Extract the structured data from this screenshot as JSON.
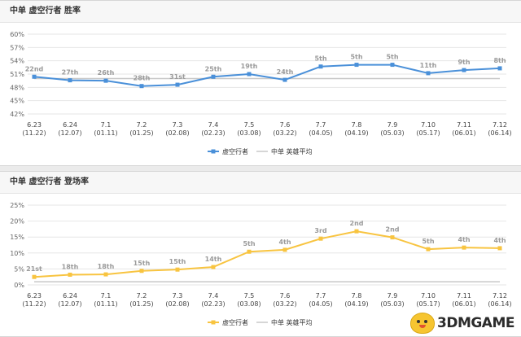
{
  "watermark": "3DMGAME",
  "chart_data": [
    {
      "type": "line",
      "title": "中单 虚空行者 胜率",
      "categories": [
        "6.23",
        "6.24",
        "7.1",
        "7.2",
        "7.3",
        "7.4",
        "7.5",
        "7.6",
        "7.7",
        "7.8",
        "7.9",
        "7.10",
        "7.11",
        "7.12"
      ],
      "x_sub_labels": [
        "(11.22)",
        "(12.07)",
        "(01.11)",
        "(01.25)",
        "(02.08)",
        "(02.23)",
        "(03.08)",
        "(03.22)",
        "(04.05)",
        "(04.19)",
        "(05.03)",
        "(05.17)",
        "(06.01)",
        "(06.14)"
      ],
      "y_ticks": [
        "60%",
        "57%",
        "54%",
        "51%",
        "48%",
        "45%",
        "42%"
      ],
      "ylim": [
        42,
        60
      ],
      "ytick_values": [
        60,
        57,
        54,
        51,
        48,
        45,
        42
      ],
      "grid": true,
      "legend_position": "bottom-center",
      "series": [
        {
          "name": "虚空行者",
          "color": "#4a90d9",
          "values": [
            50.4,
            49.6,
            49.5,
            48.3,
            48.6,
            50.4,
            51.0,
            49.7,
            52.7,
            53.1,
            53.1,
            51.2,
            51.9,
            52.3
          ],
          "labels": [
            "22nd",
            "27th",
            "26th",
            "28th",
            "31st",
            "25th",
            "19th",
            "24th",
            "5th",
            "5th",
            "5th",
            "11th",
            "9th",
            "8th"
          ]
        },
        {
          "name": "中单 英雄平均",
          "color": "#c8c8c8",
          "values": [
            50,
            50,
            50,
            50,
            50,
            50,
            50,
            50,
            50,
            50,
            50,
            50,
            50,
            50
          ]
        }
      ]
    },
    {
      "type": "line",
      "title": "中单 虚空行者 登场率",
      "categories": [
        "6.23",
        "6.24",
        "7.1",
        "7.2",
        "7.3",
        "7.4",
        "7.5",
        "7.6",
        "7.7",
        "7.8",
        "7.9",
        "7.10",
        "7.11",
        "7.12"
      ],
      "x_sub_labels": [
        "(11.22)",
        "(12.07)",
        "(01.11)",
        "(01.25)",
        "(02.08)",
        "(02.23)",
        "(03.08)",
        "(03.22)",
        "(04.05)",
        "(04.19)",
        "(05.03)",
        "(05.17)",
        "(06.01)",
        "(06.14)"
      ],
      "y_ticks": [
        "25%",
        "20%",
        "15%",
        "10%",
        "5%",
        "0%"
      ],
      "ylim": [
        0,
        25
      ],
      "ytick_values": [
        25,
        20,
        15,
        10,
        5,
        0
      ],
      "grid": true,
      "legend_position": "bottom-center",
      "series": [
        {
          "name": "虚空行者",
          "color": "#f8c440",
          "values": [
            2.5,
            3.2,
            3.3,
            4.4,
            4.8,
            5.6,
            10.4,
            11.0,
            14.5,
            16.8,
            14.9,
            11.2,
            11.7,
            11.5
          ],
          "labels": [
            "21st",
            "18th",
            "18th",
            "15th",
            "15th",
            "14th",
            "5th",
            "4th",
            "3rd",
            "2nd",
            "2nd",
            "5th",
            "4th",
            "4th"
          ]
        },
        {
          "name": "中单 英雄平均",
          "color": "#c8c8c8",
          "values": [
            1,
            1,
            1,
            1,
            1,
            1,
            1,
            1,
            1,
            1,
            1,
            1,
            1,
            1
          ]
        }
      ]
    }
  ]
}
